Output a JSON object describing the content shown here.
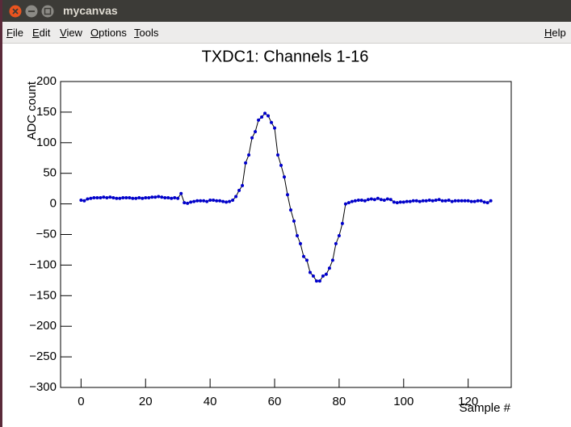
{
  "window": {
    "title": "mycanvas"
  },
  "menu": {
    "items": [
      "File",
      "Edit",
      "View",
      "Options",
      "Tools"
    ],
    "help": "Help"
  },
  "chart_data": {
    "type": "line",
    "title": "TXDC1: Channels 1-16",
    "x_label": "Sample #",
    "y_label": "ADC count",
    "x": [
      0,
      1,
      2,
      3,
      4,
      5,
      6,
      7,
      8,
      9,
      10,
      11,
      12,
      13,
      14,
      15,
      16,
      17,
      18,
      19,
      20,
      21,
      22,
      23,
      24,
      25,
      26,
      27,
      28,
      29,
      30,
      31,
      32,
      33,
      34,
      35,
      36,
      37,
      38,
      39,
      40,
      41,
      42,
      43,
      44,
      45,
      46,
      47,
      48,
      49,
      50,
      51,
      52,
      53,
      54,
      55,
      56,
      57,
      58,
      59,
      60,
      61,
      62,
      63,
      64,
      65,
      66,
      67,
      68,
      69,
      70,
      71,
      72,
      73,
      74,
      75,
      76,
      77,
      78,
      79,
      80,
      81,
      82,
      83,
      84,
      85,
      86,
      87,
      88,
      89,
      90,
      91,
      92,
      93,
      94,
      95,
      96,
      97,
      98,
      99,
      100,
      101,
      102,
      103,
      104,
      105,
      106,
      107,
      108,
      109,
      110,
      111,
      112,
      113,
      114,
      115,
      116,
      117,
      118,
      119,
      120,
      121,
      122,
      123,
      124,
      125,
      126,
      127
    ],
    "series": [
      {
        "name": "Channels 1-16",
        "color": "#0000cc",
        "line_color": "#000000",
        "values": [
          6,
          5,
          8,
          9,
          10,
          10,
          10,
          11,
          10,
          11,
          10,
          9,
          9,
          10,
          10,
          10,
          9,
          9,
          10,
          9,
          10,
          10,
          11,
          11,
          12,
          11,
          10,
          10,
          9,
          10,
          9,
          17,
          2,
          1,
          3,
          4,
          5,
          5,
          5,
          4,
          6,
          6,
          5,
          5,
          4,
          3,
          4,
          6,
          12,
          22,
          30,
          67,
          80,
          108,
          118,
          137,
          142,
          148,
          144,
          133,
          124,
          80,
          63,
          44,
          15,
          -10,
          -28,
          -52,
          -65,
          -86,
          -92,
          -112,
          -118,
          -126,
          -126,
          -118,
          -115,
          -105,
          -92,
          -65,
          -52,
          -32,
          0,
          2,
          4,
          5,
          6,
          6,
          5,
          7,
          8,
          7,
          9,
          7,
          6,
          8,
          7,
          3,
          2,
          3,
          3,
          4,
          4,
          5,
          5,
          4,
          5,
          5,
          6,
          5,
          6,
          7,
          5,
          5,
          6,
          4,
          5,
          5,
          5,
          5,
          5,
          4,
          4,
          5,
          5,
          3,
          2,
          5
        ]
      }
    ],
    "xlim": [
      -6.35,
      133.35
    ],
    "xticks": [
      0,
      20,
      40,
      60,
      80,
      100,
      120
    ],
    "ylim": [
      -300,
      200
    ],
    "yticks": [
      {
        "value": -300,
        "label": "−300"
      },
      {
        "value": -250,
        "label": "−250"
      },
      {
        "value": -200,
        "label": "−200"
      },
      {
        "value": -150,
        "label": "−150"
      },
      {
        "value": -100,
        "label": "−100"
      },
      {
        "value": -50,
        "label": "−50"
      },
      0,
      50,
      100,
      150,
      200
    ],
    "grid": false
  }
}
